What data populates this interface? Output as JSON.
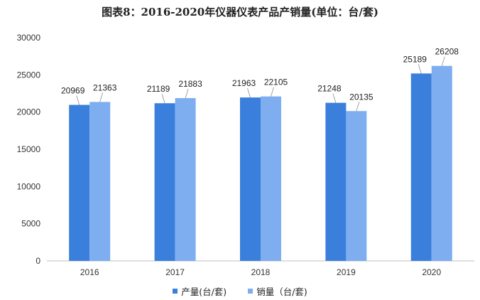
{
  "chart_data": {
    "type": "bar",
    "title": "图表8：2016-2020年仪器仪表产品产销量(单位：台/套)",
    "categories": [
      "2016",
      "2017",
      "2018",
      "2019",
      "2020"
    ],
    "series": [
      {
        "name": "产量(台/套)",
        "color": "#3a7fdc",
        "values": [
          20969,
          21189,
          21963,
          21248,
          25189
        ]
      },
      {
        "name": "销量（台/套)",
        "color": "#7eaef0",
        "values": [
          21363,
          21883,
          22105,
          20135,
          26208
        ]
      }
    ],
    "ylim": [
      0,
      30000
    ],
    "yticks": [
      "0",
      "5000",
      "10000",
      "15000",
      "20000",
      "25000",
      "30000"
    ],
    "grid": false,
    "legend_position": "bottom"
  }
}
